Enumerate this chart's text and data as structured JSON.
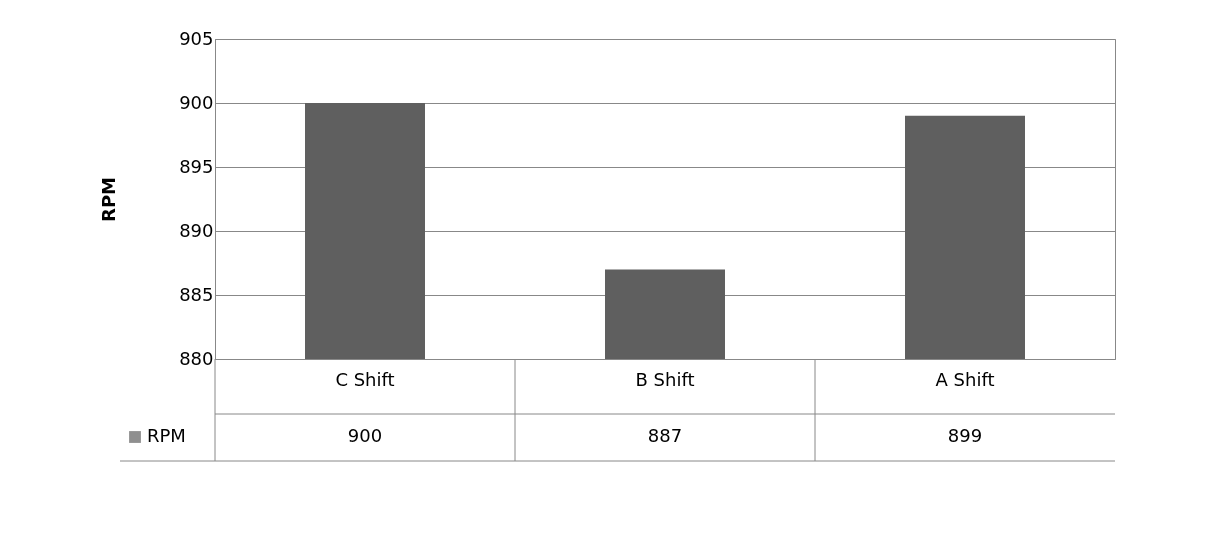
{
  "chart_data": {
    "type": "bar",
    "ylabel": "RPM",
    "categories": [
      "C Shift",
      "B Shift",
      "A Shift"
    ],
    "series": [
      {
        "name": "RPM",
        "color": "#5f5f5f",
        "values": [
          900,
          887,
          899
        ]
      }
    ],
    "ylim": [
      880,
      905
    ],
    "yticks": [
      880,
      885,
      890,
      895,
      900,
      905
    ],
    "grid": "y",
    "data_labels": true,
    "legend": "bottom left"
  }
}
